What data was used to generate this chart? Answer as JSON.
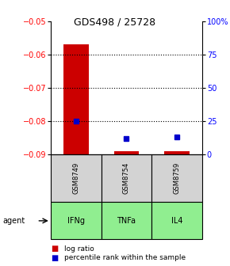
{
  "title": "GDS498 / 25728",
  "samples": [
    "GSM8749",
    "GSM8754",
    "GSM8759"
  ],
  "agents": [
    "IFNg",
    "TNFa",
    "IL4"
  ],
  "log_ratios": [
    -0.057,
    -0.089,
    -0.089
  ],
  "log_ratio_base": -0.09,
  "percentile_ranks": [
    25,
    12,
    13
  ],
  "ylim_left": [
    -0.09,
    -0.05
  ],
  "ylim_right": [
    0,
    100
  ],
  "yticks_left": [
    -0.09,
    -0.08,
    -0.07,
    -0.06,
    -0.05
  ],
  "yticks_right": [
    0,
    25,
    50,
    75,
    100
  ],
  "ytick_labels_right": [
    "0",
    "25",
    "50",
    "75",
    "100%"
  ],
  "bar_color": "#cc0000",
  "dot_color": "#0000cc",
  "agent_color": "#90ee90",
  "sample_bg_color": "#d3d3d3",
  "bar_width": 0.5,
  "legend_log": "log ratio",
  "legend_pct": "percentile rank within the sample"
}
